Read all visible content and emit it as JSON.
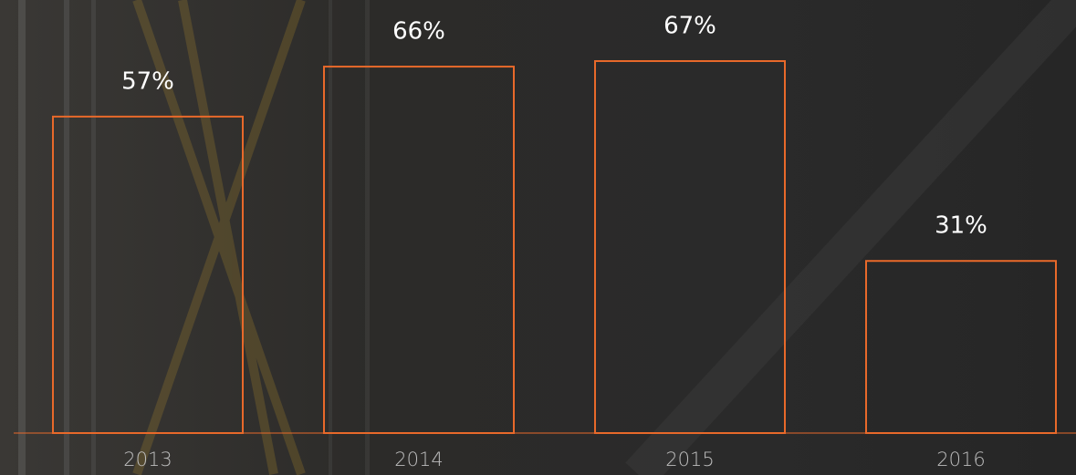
{
  "chart_data": {
    "type": "bar",
    "categories": [
      "2013",
      "2014",
      "2015",
      "2016"
    ],
    "values": [
      57,
      66,
      67,
      31
    ],
    "value_labels": [
      "57%",
      "66%",
      "67%",
      "31%"
    ],
    "color": "#e8692a",
    "ylim": [
      0,
      78
    ]
  }
}
